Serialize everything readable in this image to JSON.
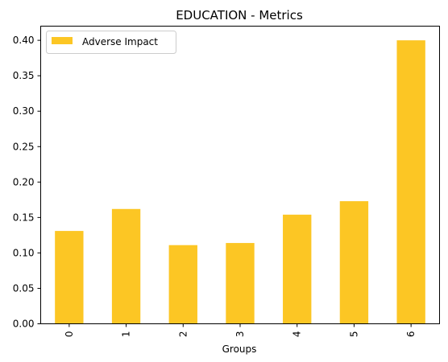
{
  "chart_data": {
    "type": "bar",
    "title": "EDUCATION - Metrics",
    "xlabel": "Groups",
    "ylabel": "",
    "categories": [
      "0",
      "1",
      "2",
      "3",
      "4",
      "5",
      "6"
    ],
    "series": [
      {
        "name": "Adverse Impact",
        "values": [
          0.131,
          0.162,
          0.111,
          0.114,
          0.154,
          0.173,
          0.4
        ]
      }
    ],
    "ylim": [
      0,
      0.42
    ],
    "yticks": [
      0.0,
      0.05,
      0.1,
      0.15,
      0.2,
      0.25,
      0.3,
      0.35,
      0.4
    ],
    "ytick_labels": [
      "0.00",
      "0.05",
      "0.10",
      "0.15",
      "0.20",
      "0.25",
      "0.30",
      "0.35",
      "0.40"
    ],
    "grid": false,
    "legend_position": "top-left",
    "bar_color": "#fcc624"
  }
}
